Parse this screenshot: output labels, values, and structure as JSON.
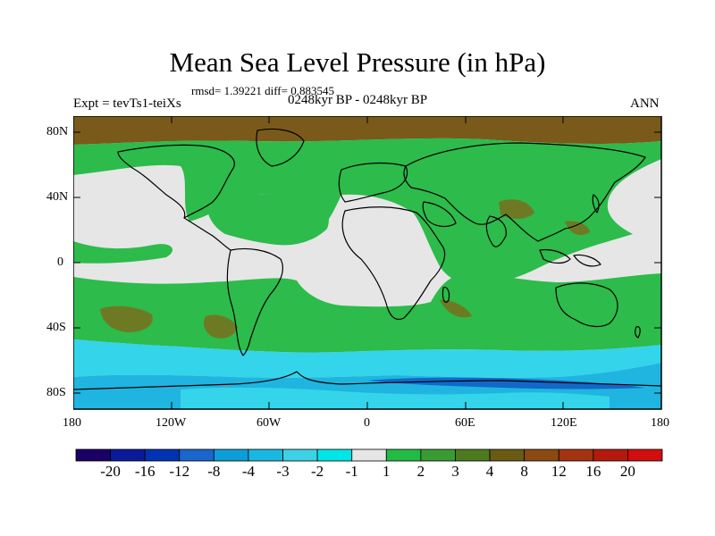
{
  "title": "Mean Sea Level Pressure (in hPa)",
  "stats": "rmsd= 1.39221 diff= 0.883545",
  "experiment": "Expt = tevTs1-teiXs",
  "period": "0248kyr BP - 0248kyr BP",
  "season": "ANN",
  "lat_labels": [
    "80N",
    "40N",
    "0",
    "40S",
    "80S"
  ],
  "lon_labels": [
    "180",
    "120W",
    "60W",
    "0",
    "60E",
    "120E",
    "180"
  ],
  "colorbar": {
    "labels": [
      "-20",
      "-16",
      "-12",
      "-8",
      "-4",
      "-3",
      "-2",
      "-1",
      "1",
      "2",
      "3",
      "4",
      "8",
      "12",
      "16",
      "20"
    ],
    "colors": [
      "#1a0066",
      "#0a1a99",
      "#0033b3",
      "#1a66cc",
      "#0d9ed9",
      "#1ab8e0",
      "#3dd1e6",
      "#00e6e6",
      "#e6e6e6",
      "#22bb44",
      "#3b9b33",
      "#4d7a1f",
      "#6b5a14",
      "#8b4a12",
      "#a33311",
      "#b31a0d",
      "#d10e0e"
    ]
  },
  "colors": {
    "land_outline": "#000000",
    "neutral": "#e6e6e6",
    "green": "#2dbb4b",
    "olive": "#6e7a23",
    "brown": "#7a5a1a",
    "cyan": "#34d4ea",
    "sky": "#1fb5e0",
    "blue": "#1268c8"
  }
}
